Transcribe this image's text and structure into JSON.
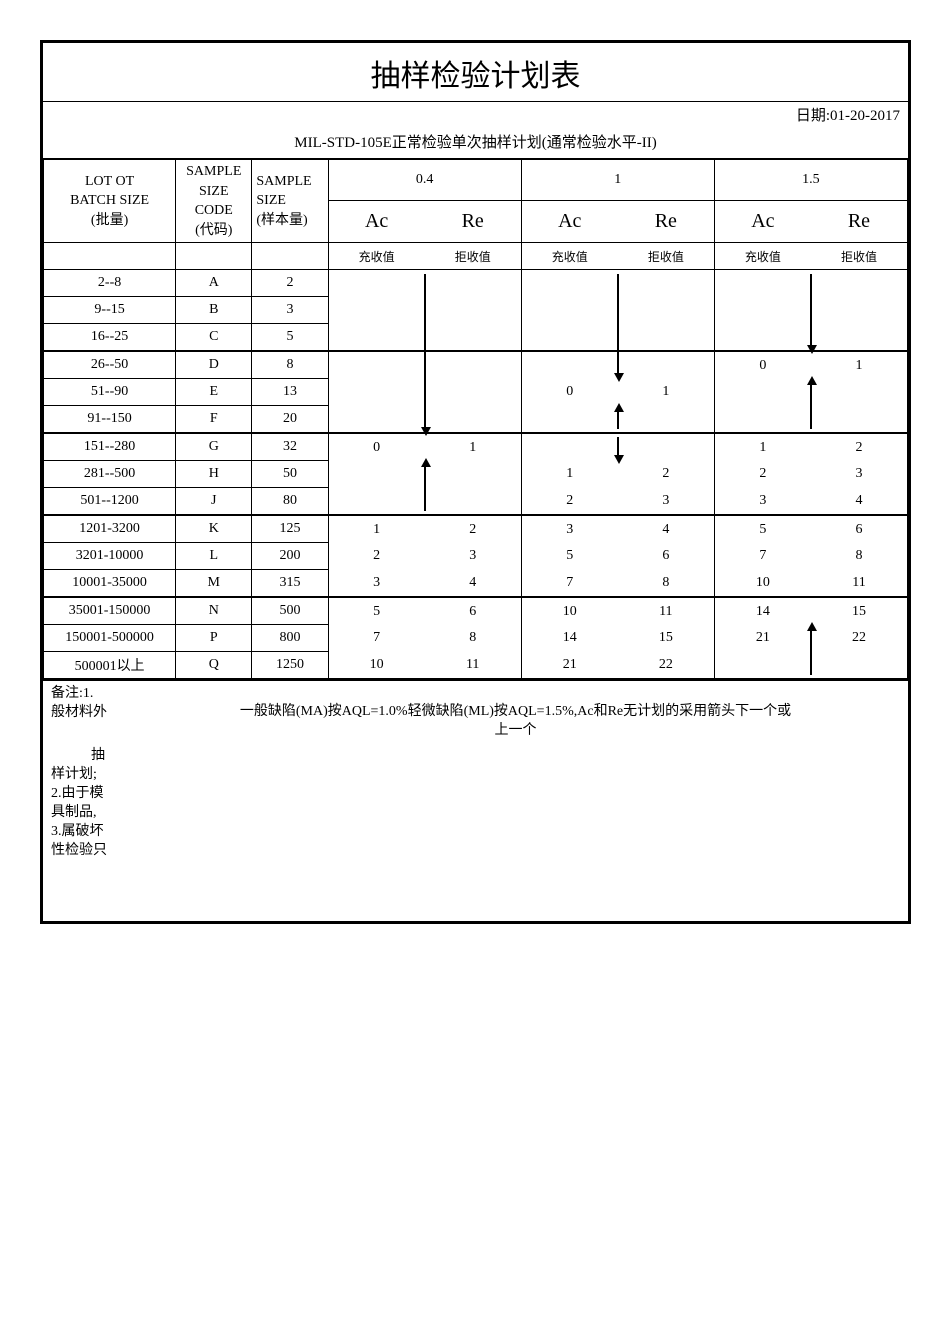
{
  "title": "抽样检验计划表",
  "date_label": "日期:01-20-2017",
  "subtitle": "MIL-STD-105E正常检验单次抽样计划(通常检验水平-II)",
  "headers": {
    "lot": "LOT  OT",
    "batch": "BATCH   SIZE",
    "batch_cn": "(批量)",
    "sample_code_top": "SAMPLE",
    "sample_code_mid": "SIZE",
    "sample_code_label": "CODE",
    "sample_code_cn": "(代码)",
    "sample_size_top": "SAMPLE",
    "sample_size_mid": "SIZE",
    "sample_size_cn": "(样本量)",
    "aql_04": "0.4",
    "aql_1": "1",
    "aql_15": "1.5",
    "ac": "Ac",
    "re": "Re",
    "ac_cn": "充收值",
    "re_cn": "拒收值"
  },
  "rows": [
    {
      "lot": "2--8",
      "code": "A",
      "size": "2",
      "v04ac": "",
      "v04re": "",
      "v1ac": "",
      "v1re": "",
      "v15ac": "",
      "v15re": ""
    },
    {
      "lot": "9--15",
      "code": "B",
      "size": "3",
      "v04ac": "",
      "v04re": "",
      "v1ac": "",
      "v1re": "",
      "v15ac": "",
      "v15re": ""
    },
    {
      "lot": "16--25",
      "code": "C",
      "size": "5",
      "v04ac": "",
      "v04re": "",
      "v1ac": "",
      "v1re": "",
      "v15ac": "",
      "v15re": ""
    },
    {
      "lot": "26--50",
      "code": "D",
      "size": "8",
      "v04ac": "",
      "v04re": "",
      "v1ac": "",
      "v1re": "",
      "v15ac": "0",
      "v15re": "1"
    },
    {
      "lot": "51--90",
      "code": "E",
      "size": "13",
      "v04ac": "",
      "v04re": "",
      "v1ac": "0",
      "v1re": "1",
      "v15ac": "",
      "v15re": ""
    },
    {
      "lot": "91--150",
      "code": "F",
      "size": "20",
      "v04ac": "",
      "v04re": "",
      "v1ac": "",
      "v1re": "",
      "v15ac": "",
      "v15re": ""
    },
    {
      "lot": "151--280",
      "code": "G",
      "size": "32",
      "v04ac": "0",
      "v04re": "1",
      "v1ac": "",
      "v1re": "",
      "v15ac": "1",
      "v15re": "2"
    },
    {
      "lot": "281--500",
      "code": "H",
      "size": "50",
      "v04ac": "",
      "v04re": "",
      "v1ac": "1",
      "v1re": "2",
      "v15ac": "2",
      "v15re": "3"
    },
    {
      "lot": "501--1200",
      "code": "J",
      "size": "80",
      "v04ac": "",
      "v04re": "",
      "v1ac": "2",
      "v1re": "3",
      "v15ac": "3",
      "v15re": "4"
    },
    {
      "lot": "1201-3200",
      "code": "K",
      "size": "125",
      "v04ac": "1",
      "v04re": "2",
      "v1ac": "3",
      "v1re": "4",
      "v15ac": "5",
      "v15re": "6"
    },
    {
      "lot": "3201-10000",
      "code": "L",
      "size": "200",
      "v04ac": "2",
      "v04re": "3",
      "v1ac": "5",
      "v1re": "6",
      "v15ac": "7",
      "v15re": "8"
    },
    {
      "lot": "10001-35000",
      "code": "M",
      "size": "315",
      "v04ac": "3",
      "v04re": "4",
      "v1ac": "7",
      "v1re": "8",
      "v15ac": "10",
      "v15re": "11"
    },
    {
      "lot": "35001-150000",
      "code": "N",
      "size": "500",
      "v04ac": "5",
      "v04re": "6",
      "v1ac": "10",
      "v1re": "11",
      "v15ac": "14",
      "v15re": "15"
    },
    {
      "lot": "150001-500000",
      "code": "P",
      "size": "800",
      "v04ac": "7",
      "v04re": "8",
      "v1ac": "14",
      "v1re": "15",
      "v15ac": "21",
      "v15re": "22"
    },
    {
      "lot": "500001以上",
      "code": "Q",
      "size": "1250",
      "v04ac": "10",
      "v04re": "11",
      "v1ac": "21",
      "v1re": "22",
      "v15ac": "",
      "v15re": ""
    }
  ],
  "groups_thick_after": [
    2,
    5,
    8,
    11
  ],
  "arrows": [
    {
      "col": "04",
      "from_row": 0,
      "to_row": 5,
      "dir": "down",
      "between": true
    },
    {
      "col": "1",
      "from_row": 0,
      "to_row": 3,
      "dir": "down",
      "between": true
    },
    {
      "col": "15",
      "from_row": 0,
      "to_row": 2,
      "dir": "down",
      "between": true
    },
    {
      "col": "15",
      "from_row": 4,
      "to_row": 5,
      "dir": "up",
      "between": true
    },
    {
      "col": "1",
      "from_row": 5,
      "to_row": 5,
      "dir": "up",
      "between": true
    },
    {
      "col": "1",
      "from_row": 6,
      "to_row": 6,
      "dir": "down",
      "between": true
    },
    {
      "col": "04",
      "from_row": 7,
      "to_row": 8,
      "dir": "up",
      "between": true
    },
    {
      "col": "15",
      "from_row": 13,
      "to_row": 14,
      "dir": "up",
      "between": true
    }
  ],
  "notes": {
    "left1": "备注:1.",
    "left2": "般材料外",
    "center1": "一般缺陷(MA)按AQL=1.0%轻微缺陷(ML)按AQL=1.5%,Ac和Re无计划的采用箭头下一个或",
    "center2": "上一个",
    "left3": "抽",
    "left4": "样计划;",
    "left5": "2.由于模",
    "left6": "具制品,",
    "left7": "3.属破坏",
    "left8": "性检验只"
  },
  "style": {
    "border_color": "#000000",
    "background": "#ffffff",
    "title_fontsize": 30,
    "body_fontsize": 14,
    "big_fontsize": 20
  }
}
